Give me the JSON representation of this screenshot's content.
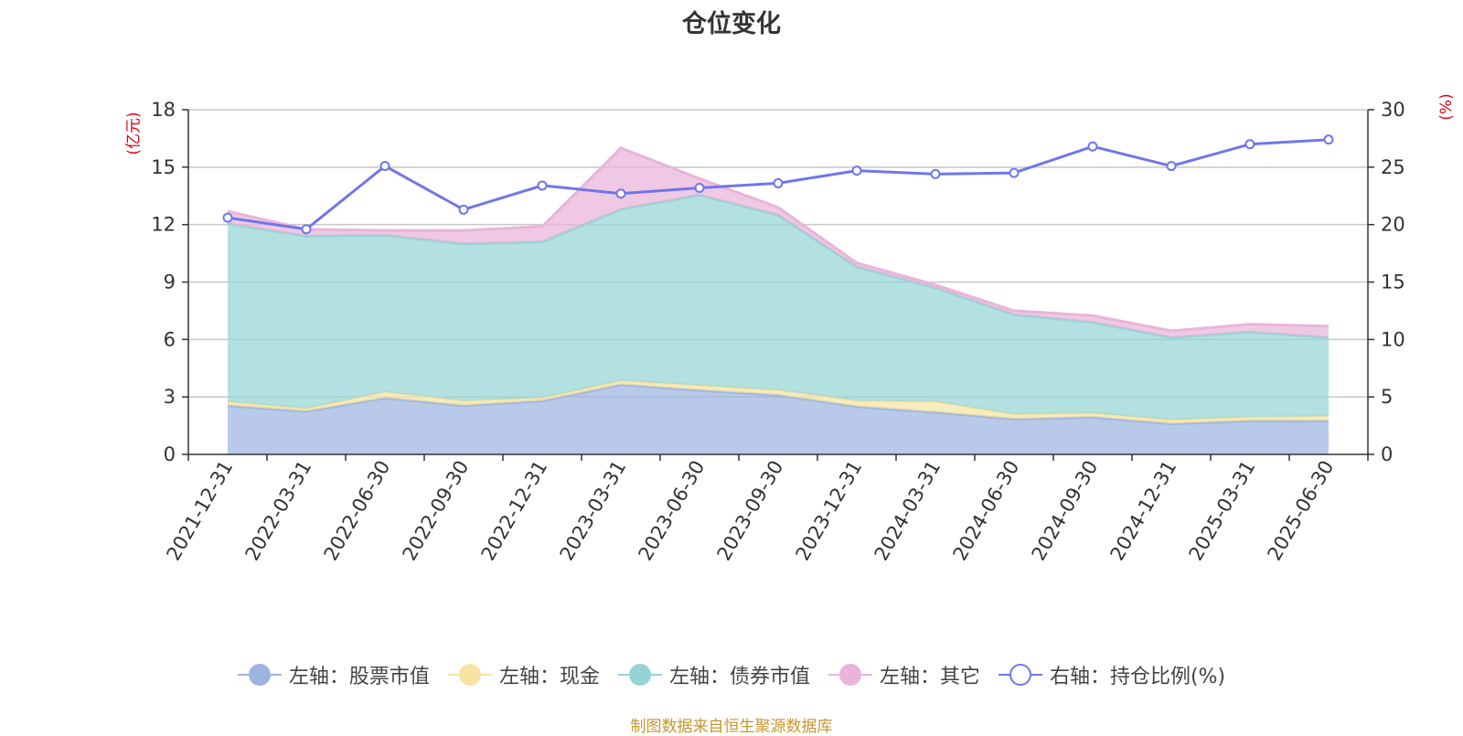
{
  "title": "仓位变化",
  "left_unit": "(亿元)",
  "right_unit": "(%)",
  "source": "制图数据来自恒生聚源数据库",
  "chart_data": {
    "type": "area",
    "categories": [
      "2021-12-31",
      "2022-03-31",
      "2022-06-30",
      "2022-09-30",
      "2022-12-31",
      "2023-03-31",
      "2023-06-30",
      "2023-09-30",
      "2023-12-31",
      "2024-03-31",
      "2024-06-30",
      "2024-09-30",
      "2024-12-31",
      "2025-03-31",
      "2025-06-30"
    ],
    "left_axis": {
      "min": 0,
      "max": 18,
      "ticks": [
        0,
        3,
        6,
        9,
        12,
        15,
        18
      ]
    },
    "right_axis": {
      "min": 0,
      "max": 30,
      "ticks": [
        0,
        5,
        10,
        15,
        20,
        25,
        30
      ]
    },
    "grid": true,
    "legend_position": "bottom",
    "series": [
      {
        "name": "左轴：股票市值",
        "axis": "left",
        "stacked": true,
        "color": "#9db4e0",
        "values": [
          2.55,
          2.25,
          2.95,
          2.55,
          2.8,
          3.65,
          3.35,
          3.1,
          2.5,
          2.2,
          1.85,
          1.95,
          1.6,
          1.75,
          1.75
        ]
      },
      {
        "name": "左轴：现金",
        "axis": "left",
        "stacked": true,
        "color": "#f7e4a4",
        "values": [
          0.2,
          0.15,
          0.3,
          0.25,
          0.15,
          0.2,
          0.25,
          0.25,
          0.3,
          0.55,
          0.25,
          0.2,
          0.2,
          0.2,
          0.25
        ]
      },
      {
        "name": "左轴：债券市值",
        "axis": "left",
        "stacked": true,
        "color": "#95d4d4",
        "values": [
          9.3,
          9.0,
          8.2,
          8.2,
          8.15,
          8.95,
          9.95,
          9.15,
          7.0,
          5.95,
          5.2,
          4.75,
          4.3,
          4.45,
          4.1
        ]
      },
      {
        "name": "左轴：其它",
        "axis": "left",
        "stacked": true,
        "color": "#e9b4da",
        "values": [
          0.65,
          0.35,
          0.25,
          0.7,
          0.8,
          3.2,
          0.85,
          0.4,
          0.2,
          0.15,
          0.2,
          0.35,
          0.35,
          0.4,
          0.6
        ]
      },
      {
        "name": "右轴：持仓比例(%)",
        "axis": "right",
        "type": "line",
        "color": "#7076ea",
        "values": [
          20.6,
          19.6,
          25.1,
          21.3,
          23.4,
          22.7,
          23.2,
          23.6,
          24.7,
          24.4,
          24.5,
          26.8,
          25.1,
          27.0,
          27.4
        ]
      }
    ]
  }
}
